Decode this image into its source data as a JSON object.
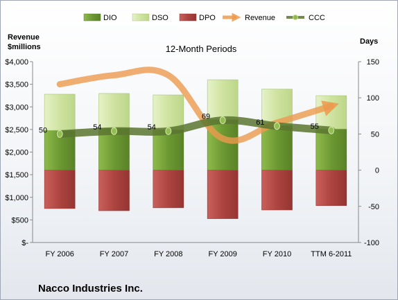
{
  "chart_data": {
    "type": "bar",
    "title": "12-Month Periods",
    "company": "Nacco Industries Inc.",
    "left_axis_title_line1": "Revenue",
    "left_axis_title_line2": "$millions",
    "right_axis_title": "Days",
    "categories": [
      "FY 2006",
      "FY 2007",
      "FY 2008",
      "FY 2009",
      "FY 2010",
      "TTM 6-2011"
    ],
    "left_axis": {
      "ticks": [
        0,
        500,
        1000,
        1500,
        2000,
        2500,
        3000,
        3500,
        4000
      ],
      "tick_labels": [
        "$-",
        "$500",
        "$1,000",
        "$1,500",
        "$2,000",
        "$2,500",
        "$3,000",
        "$3,500",
        "$4,000"
      ],
      "ylim": [
        0,
        4000
      ]
    },
    "right_axis": {
      "ticks": [
        -100,
        -50,
        0,
        50,
        100,
        150
      ],
      "tick_labels": [
        "-100",
        "-50",
        "0",
        "50",
        "100",
        "150"
      ],
      "ylim": [
        -100,
        150
      ]
    },
    "series": [
      {
        "name": "DIO",
        "kind": "stacked-bar-positive",
        "axis": "days",
        "values": [
          55,
          58,
          56,
          70,
          62,
          57
        ],
        "color": "#7aa53a"
      },
      {
        "name": "DSO",
        "kind": "stacked-bar-positive",
        "axis": "days",
        "values": [
          50,
          48,
          48,
          55,
          50,
          46
        ],
        "color": "#d3e6a8"
      },
      {
        "name": "DPO",
        "kind": "bar-negative",
        "axis": "days",
        "values": [
          -53,
          -56,
          -52,
          -67,
          -55,
          -49
        ],
        "color": "#b74a47"
      },
      {
        "name": "Revenue",
        "kind": "line",
        "axis": "revenue",
        "values": [
          3500,
          3700,
          3700,
          2300,
          2650,
          3020
        ],
        "color": "#ec9a4e"
      },
      {
        "name": "CCC",
        "kind": "line",
        "axis": "days",
        "values": [
          50,
          54,
          54,
          69,
          61,
          55
        ],
        "color": "#5a7630"
      }
    ],
    "ccc_labels": [
      "50",
      "54",
      "54",
      "69",
      "61",
      "55"
    ],
    "legend_position": "top",
    "grid": false
  }
}
